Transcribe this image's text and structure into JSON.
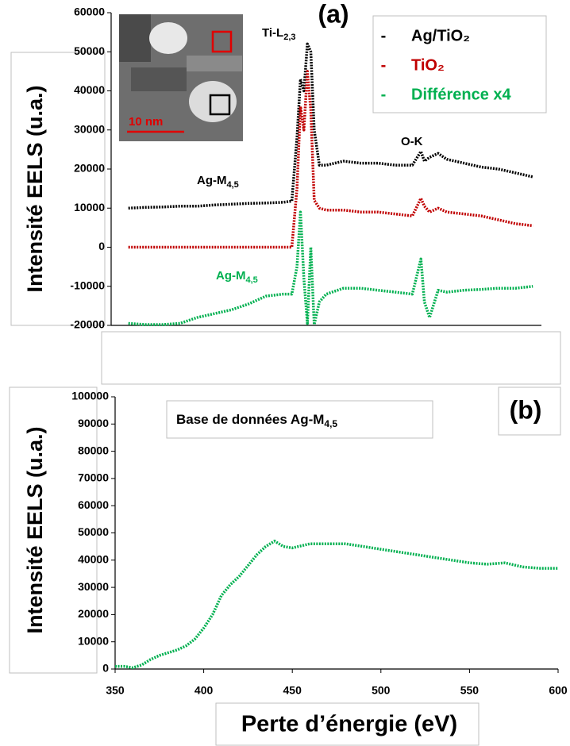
{
  "chart_data": [
    {
      "type": "line",
      "title": "(a)",
      "y_label": "Intensité EELS (u.a.)",
      "inset_scale": "10 nm",
      "x": [
        355,
        365,
        375,
        385,
        395,
        405,
        415,
        425,
        435,
        445,
        450,
        453,
        455,
        457,
        459,
        461,
        463,
        466,
        470,
        480,
        490,
        500,
        510,
        520,
        525,
        527,
        530,
        535,
        540,
        550,
        560,
        570,
        580,
        590
      ],
      "xlim": [
        345,
        595
      ],
      "ylim": [
        -20000,
        60000
      ],
      "yticks": [
        -20000,
        -10000,
        0,
        10000,
        20000,
        30000,
        40000,
        50000,
        60000
      ],
      "series": [
        {
          "name": "Ag/TiO₂",
          "label": "-",
          "color": "#000000",
          "values": [
            10000,
            10200,
            10300,
            10500,
            10500,
            10800,
            11000,
            11200,
            11300,
            11500,
            11800,
            28000,
            43000,
            40000,
            52000,
            50000,
            30000,
            21000,
            21000,
            22000,
            21500,
            21500,
            21000,
            21000,
            24500,
            22000,
            23000,
            24000,
            22500,
            21500,
            20500,
            20000,
            19000,
            18000
          ]
        },
        {
          "name": "TiO₂",
          "label": "-",
          "color": "#c00000",
          "values": [
            0,
            0,
            0,
            0,
            0,
            0,
            0,
            0,
            0,
            0,
            0,
            15000,
            36000,
            30000,
            45000,
            35000,
            12000,
            10000,
            9500,
            9500,
            9000,
            9000,
            8500,
            8000,
            12500,
            10500,
            9000,
            10000,
            9000,
            8500,
            8000,
            7000,
            6000,
            5500
          ]
        },
        {
          "name": "Différence x4",
          "label": "-",
          "color": "#00b050",
          "values": [
            -19500,
            -19800,
            -19800,
            -19500,
            -18000,
            -17000,
            -16000,
            -14500,
            -12500,
            -12000,
            -12000,
            -5000,
            9000,
            -8000,
            -19500,
            0,
            -19800,
            -14000,
            -12000,
            -10500,
            -10500,
            -11000,
            -11500,
            -12000,
            -3000,
            -14000,
            -18000,
            -11000,
            -11500,
            -11000,
            -10800,
            -10500,
            -10500,
            -10000
          ]
        }
      ],
      "annotations": [
        {
          "text": "Ti-L",
          "sub": "2,3",
          "color": "#000000"
        },
        {
          "text": "O-K",
          "sub": "",
          "color": "#000000"
        },
        {
          "text": "Ag-M",
          "sub": "4,5",
          "color": "#000000"
        },
        {
          "text": "Ag-M",
          "sub": "4,5",
          "color": "#00b050"
        }
      ]
    },
    {
      "type": "line",
      "title": "(b)",
      "y_label": "Intensité EELS (u.a.)",
      "x_label": "Perte d’énergie (eV)",
      "x": [
        350,
        355,
        360,
        365,
        370,
        375,
        380,
        385,
        390,
        395,
        400,
        405,
        410,
        415,
        420,
        425,
        430,
        435,
        440,
        445,
        450,
        460,
        470,
        480,
        490,
        500,
        510,
        520,
        530,
        540,
        550,
        560,
        570,
        580,
        590,
        600
      ],
      "values": [
        1000,
        1000,
        500,
        1500,
        3500,
        5000,
        6000,
        7000,
        8500,
        11000,
        15000,
        20000,
        27000,
        31000,
        34000,
        38000,
        42000,
        45000,
        47000,
        45000,
        44500,
        46000,
        46000,
        46000,
        45000,
        44000,
        43000,
        42000,
        41000,
        40000,
        39000,
        38500,
        39000,
        37500,
        37000,
        37000
      ],
      "color": "#00b050",
      "xlim": [
        350,
        600
      ],
      "xticks": [
        350,
        400,
        450,
        500,
        550,
        600
      ],
      "ylim": [
        0,
        100000
      ],
      "yticks": [
        0,
        10000,
        20000,
        30000,
        40000,
        50000,
        60000,
        70000,
        80000,
        90000,
        100000
      ],
      "annotations": [
        {
          "text": "Base de données Ag-M",
          "sub": "4,5",
          "color": "#000000"
        }
      ]
    }
  ]
}
